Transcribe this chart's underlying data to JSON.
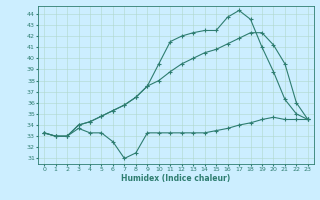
{
  "xlabel": "Humidex (Indice chaleur)",
  "bg_color": "#cceeff",
  "grid_color": "#b0d8cc",
  "line_color": "#2e7d70",
  "xlim": [
    -0.5,
    23.5
  ],
  "ylim": [
    30.5,
    44.7
  ],
  "yticks": [
    31,
    32,
    33,
    34,
    35,
    36,
    37,
    38,
    39,
    40,
    41,
    42,
    43,
    44
  ],
  "xticks": [
    0,
    1,
    2,
    3,
    4,
    5,
    6,
    7,
    8,
    9,
    10,
    11,
    12,
    13,
    14,
    15,
    16,
    17,
    18,
    19,
    20,
    21,
    22,
    23
  ],
  "series1_x": [
    0,
    1,
    2,
    3,
    4,
    5,
    6,
    7,
    8,
    9,
    10,
    11,
    12,
    13,
    14,
    15,
    16,
    17,
    18,
    19,
    20,
    21,
    22,
    23
  ],
  "series1_y": [
    33.3,
    33.0,
    33.0,
    33.7,
    33.3,
    33.3,
    32.5,
    31.0,
    31.5,
    33.3,
    33.3,
    33.3,
    33.3,
    33.3,
    33.3,
    33.5,
    33.7,
    34.0,
    34.2,
    34.5,
    34.7,
    34.5,
    34.5,
    34.5
  ],
  "series2_x": [
    0,
    1,
    2,
    3,
    4,
    5,
    6,
    7,
    8,
    9,
    10,
    11,
    12,
    13,
    14,
    15,
    16,
    17,
    18,
    19,
    20,
    21,
    22,
    23
  ],
  "series2_y": [
    33.3,
    33.0,
    33.0,
    34.0,
    34.3,
    34.8,
    35.3,
    35.8,
    36.5,
    37.5,
    39.5,
    41.5,
    42.0,
    42.3,
    42.5,
    42.5,
    43.7,
    44.3,
    43.5,
    41.0,
    38.8,
    36.3,
    35.0,
    34.5
  ],
  "series3_x": [
    0,
    1,
    2,
    3,
    4,
    5,
    6,
    7,
    8,
    9,
    10,
    11,
    12,
    13,
    14,
    15,
    16,
    17,
    18,
    19,
    20,
    21,
    22,
    23
  ],
  "series3_y": [
    33.3,
    33.0,
    33.0,
    34.0,
    34.3,
    34.8,
    35.3,
    35.8,
    36.5,
    37.5,
    38.0,
    38.8,
    39.5,
    40.0,
    40.5,
    40.8,
    41.3,
    41.8,
    42.3,
    42.3,
    41.2,
    39.5,
    36.0,
    34.5
  ]
}
